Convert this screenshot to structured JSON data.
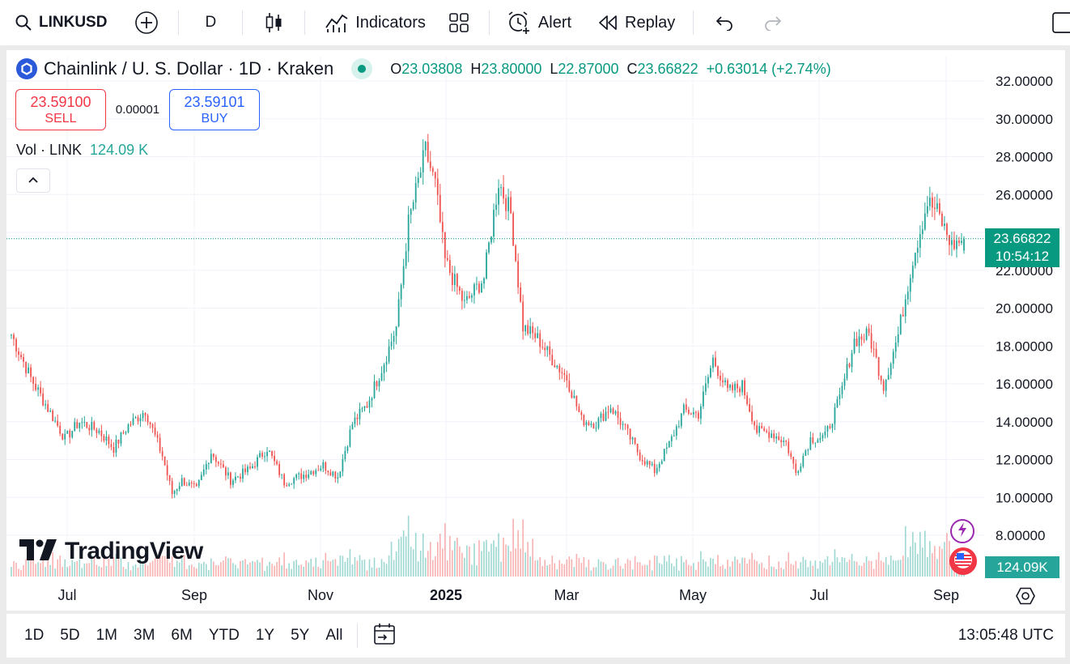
{
  "toolbar": {
    "symbol": "LINKUSD",
    "interval": "D",
    "indicators_label": "Indicators",
    "alert_label": "Alert",
    "replay_label": "Replay"
  },
  "legend": {
    "title": "Chainlink / U. S. Dollar · 1D · Kraken",
    "open_label": "O",
    "open": "23.03808",
    "high_label": "H",
    "high": "23.80000",
    "low_label": "L",
    "low": "22.87000",
    "close_label": "C",
    "close": "23.66822",
    "change": "+0.63014 (+2.74%)"
  },
  "trade": {
    "sell_price": "23.59100",
    "sell_label": "SELL",
    "spread": "0.00001",
    "buy_price": "23.59101",
    "buy_label": "BUY"
  },
  "volume": {
    "label": "Vol · LINK",
    "value": "124.09 K"
  },
  "price_axis": {
    "ticks": [
      "32.00000",
      "30.00000",
      "28.00000",
      "26.00000",
      "22.00000",
      "20.00000",
      "18.00000",
      "16.00000",
      "14.00000",
      "12.00000",
      "10.00000",
      "8.00000"
    ],
    "current_price": "23.66822",
    "countdown": "10:54:12",
    "volume_badge": "124.09K"
  },
  "time_axis": {
    "labels": [
      "Jul",
      "Sep",
      "Nov",
      "2025",
      "Mar",
      "May",
      "Jul",
      "Sep"
    ]
  },
  "watermark": "TradingView",
  "colors": {
    "up": "#26a69a",
    "down": "#ef5350",
    "accent": "#2962ff",
    "badge": "#089981"
  },
  "bottombar": {
    "ranges": [
      "1D",
      "5D",
      "1M",
      "3M",
      "6M",
      "YTD",
      "1Y",
      "5Y",
      "All"
    ],
    "clock": "13:05:48 UTC"
  },
  "chart_data": {
    "type": "candlestick",
    "ylim": [
      7.5,
      32.5
    ],
    "xlabels": [
      "Jul",
      "Sep",
      "Nov",
      "2025",
      "Mar",
      "May",
      "Jul",
      "Sep"
    ],
    "anchors": [
      {
        "i": 0,
        "p": 18.6
      },
      {
        "i": 8,
        "p": 16.3
      },
      {
        "i": 15,
        "p": 14.7
      },
      {
        "i": 22,
        "p": 13.1
      },
      {
        "i": 28,
        "p": 14.0
      },
      {
        "i": 36,
        "p": 13.5
      },
      {
        "i": 42,
        "p": 12.6
      },
      {
        "i": 48,
        "p": 13.8
      },
      {
        "i": 55,
        "p": 14.6
      },
      {
        "i": 62,
        "p": 12.2
      },
      {
        "i": 66,
        "p": 10.2
      },
      {
        "i": 70,
        "p": 10.9
      },
      {
        "i": 76,
        "p": 10.4
      },
      {
        "i": 82,
        "p": 12.4
      },
      {
        "i": 90,
        "p": 10.9
      },
      {
        "i": 98,
        "p": 11.5
      },
      {
        "i": 105,
        "p": 12.6
      },
      {
        "i": 112,
        "p": 10.8
      },
      {
        "i": 120,
        "p": 11.2
      },
      {
        "i": 128,
        "p": 11.7
      },
      {
        "i": 134,
        "p": 11.1
      },
      {
        "i": 140,
        "p": 13.9
      },
      {
        "i": 146,
        "p": 14.9
      },
      {
        "i": 152,
        "p": 16.8
      },
      {
        "i": 158,
        "p": 19.0
      },
      {
        "i": 163,
        "p": 24.5
      },
      {
        "i": 170,
        "p": 28.3
      },
      {
        "i": 174,
        "p": 26.5
      },
      {
        "i": 178,
        "p": 22.5
      },
      {
        "i": 186,
        "p": 20.2
      },
      {
        "i": 194,
        "p": 21.6
      },
      {
        "i": 200,
        "p": 26.7
      },
      {
        "i": 205,
        "p": 25.0
      },
      {
        "i": 210,
        "p": 19.0
      },
      {
        "i": 216,
        "p": 18.4
      },
      {
        "i": 222,
        "p": 17.3
      },
      {
        "i": 228,
        "p": 16.3
      },
      {
        "i": 234,
        "p": 14.1
      },
      {
        "i": 240,
        "p": 13.9
      },
      {
        "i": 246,
        "p": 14.8
      },
      {
        "i": 252,
        "p": 13.6
      },
      {
        "i": 258,
        "p": 12.2
      },
      {
        "i": 264,
        "p": 11.4
      },
      {
        "i": 270,
        "p": 12.8
      },
      {
        "i": 276,
        "p": 14.6
      },
      {
        "i": 282,
        "p": 14.4
      },
      {
        "i": 288,
        "p": 17.3
      },
      {
        "i": 294,
        "p": 15.6
      },
      {
        "i": 300,
        "p": 15.9
      },
      {
        "i": 306,
        "p": 13.5
      },
      {
        "i": 312,
        "p": 13.4
      },
      {
        "i": 318,
        "p": 12.9
      },
      {
        "i": 322,
        "p": 11.3
      },
      {
        "i": 328,
        "p": 13.1
      },
      {
        "i": 334,
        "p": 13.2
      },
      {
        "i": 340,
        "p": 15.2
      },
      {
        "i": 346,
        "p": 18.3
      },
      {
        "i": 352,
        "p": 18.6
      },
      {
        "i": 358,
        "p": 15.9
      },
      {
        "i": 364,
        "p": 18.6
      },
      {
        "i": 370,
        "p": 22.6
      },
      {
        "i": 376,
        "p": 25.6
      },
      {
        "i": 380,
        "p": 25.1
      },
      {
        "i": 386,
        "p": 23.3
      },
      {
        "i": 391,
        "p": 23.67
      }
    ]
  }
}
